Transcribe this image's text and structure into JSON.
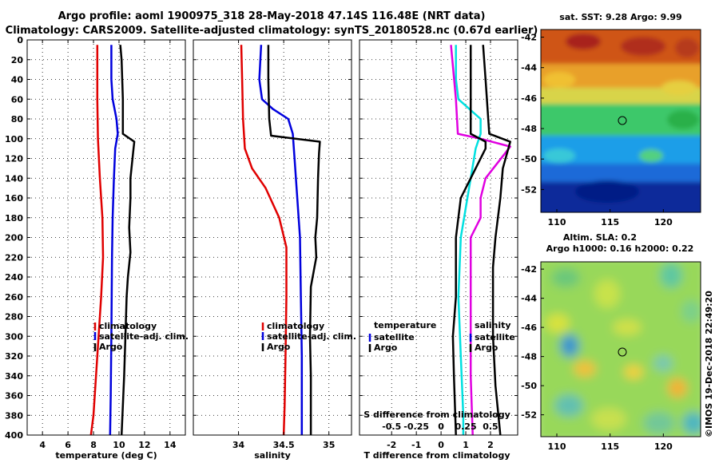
{
  "title": {
    "line1": "Argo profile: aoml 1900975_318 28-May-2018 47.14S 116.48E (NRT data)",
    "line2": "Climatology: CARS2009. Satellite-adjusted climatology: synTS_20180528.nc (0.67d earlier)"
  },
  "colors": {
    "climatology": "#e00000",
    "satellite_adj": "#0000dd",
    "argo": "#000000",
    "t_diff_satellite": "#00e0e0",
    "s_diff_satellite": "#e000e0"
  },
  "chart_data": [
    {
      "type": "line",
      "name": "temperature-panel",
      "xlabel": "temperature (deg C)",
      "xlim": [
        2.8,
        15.2
      ],
      "xticks": [
        4,
        6,
        8,
        10,
        12,
        14
      ],
      "ylim": [
        0,
        400
      ],
      "yticks": [
        0,
        20,
        40,
        60,
        80,
        100,
        120,
        140,
        160,
        180,
        200,
        220,
        240,
        260,
        280,
        300,
        320,
        340,
        360,
        380,
        400
      ],
      "legend": [
        "climatology",
        "satellite-adj. clim.",
        "Argo"
      ],
      "series": [
        {
          "name": "climatology",
          "color": "#e00000",
          "points": [
            [
              8.3,
              5
            ],
            [
              8.3,
              60
            ],
            [
              8.35,
              100
            ],
            [
              8.5,
              140
            ],
            [
              8.7,
              180
            ],
            [
              8.75,
              220
            ],
            [
              8.6,
              260
            ],
            [
              8.4,
              300
            ],
            [
              8.2,
              340
            ],
            [
              8.0,
              380
            ],
            [
              7.8,
              400
            ]
          ]
        },
        {
          "name": "satellite-adj. clim.",
          "color": "#0000dd",
          "points": [
            [
              9.4,
              5
            ],
            [
              9.4,
              40
            ],
            [
              9.5,
              60
            ],
            [
              9.8,
              80
            ],
            [
              9.9,
              95
            ],
            [
              9.7,
              110
            ],
            [
              9.6,
              140
            ],
            [
              9.5,
              180
            ],
            [
              9.45,
              220
            ],
            [
              9.4,
              300
            ],
            [
              9.35,
              360
            ],
            [
              9.3,
              400
            ]
          ]
        },
        {
          "name": "Argo",
          "color": "#000000",
          "points": [
            [
              10.1,
              5
            ],
            [
              10.2,
              20
            ],
            [
              10.3,
              60
            ],
            [
              10.3,
              95
            ],
            [
              11.2,
              103
            ],
            [
              11.1,
              115
            ],
            [
              10.9,
              140
            ],
            [
              10.9,
              160
            ],
            [
              10.8,
              190
            ],
            [
              10.9,
              215
            ],
            [
              10.7,
              240
            ],
            [
              10.6,
              260
            ],
            [
              10.5,
              300
            ],
            [
              10.4,
              340
            ],
            [
              10.3,
              370
            ],
            [
              10.2,
              400
            ]
          ]
        }
      ]
    },
    {
      "type": "line",
      "name": "salinity-panel",
      "xlabel": "salinity",
      "xlim": [
        33.5,
        35.25
      ],
      "xticks": [
        34,
        34.5,
        35
      ],
      "ylim": [
        0,
        400
      ],
      "legend": [
        "climatology",
        "satellite-adj. clim.",
        "Argo"
      ],
      "series": [
        {
          "name": "climatology",
          "color": "#e00000",
          "points": [
            [
              34.03,
              5
            ],
            [
              34.04,
              40
            ],
            [
              34.05,
              80
            ],
            [
              34.07,
              110
            ],
            [
              34.15,
              130
            ],
            [
              34.3,
              150
            ],
            [
              34.45,
              180
            ],
            [
              34.53,
              210
            ],
            [
              34.53,
              260
            ],
            [
              34.52,
              320
            ],
            [
              34.51,
              370
            ],
            [
              34.5,
              400
            ]
          ]
        },
        {
          "name": "satellite-adj. clim.",
          "color": "#0000dd",
          "points": [
            [
              34.25,
              5
            ],
            [
              34.23,
              40
            ],
            [
              34.26,
              60
            ],
            [
              34.38,
              70
            ],
            [
              34.55,
              80
            ],
            [
              34.6,
              95
            ],
            [
              34.62,
              120
            ],
            [
              34.65,
              160
            ],
            [
              34.68,
              200
            ],
            [
              34.69,
              260
            ],
            [
              34.7,
              320
            ],
            [
              34.7,
              400
            ]
          ]
        },
        {
          "name": "Argo",
          "color": "#000000",
          "points": [
            [
              34.33,
              5
            ],
            [
              34.33,
              40
            ],
            [
              34.34,
              80
            ],
            [
              34.36,
              97
            ],
            [
              34.9,
              103
            ],
            [
              34.89,
              115
            ],
            [
              34.88,
              140
            ],
            [
              34.87,
              180
            ],
            [
              34.85,
              200
            ],
            [
              34.86,
              220
            ],
            [
              34.8,
              250
            ],
            [
              34.79,
              300
            ],
            [
              34.8,
              340
            ],
            [
              34.8,
              400
            ]
          ]
        }
      ]
    },
    {
      "type": "line",
      "name": "difference-panel",
      "xlabel": "T difference from climatology",
      "xlabel_top": "S difference from climatology",
      "xlim": [
        -3.3,
        3.1
      ],
      "xticks": [
        -2,
        -1,
        0,
        1,
        2
      ],
      "xlim_top": [
        -0.825,
        0.775
      ],
      "xticks_top": [
        -0.5,
        -0.25,
        0,
        0.25,
        0.5
      ],
      "ylim": [
        0,
        400
      ],
      "legend_left": [
        "temperature",
        "satellite",
        "Argo"
      ],
      "legend_right": [
        "salinity",
        "satellite",
        "Argo"
      ],
      "series": [
        {
          "name": "T diff satellite",
          "color": "#00e0e0",
          "points": [
            [
              0.6,
              5
            ],
            [
              0.6,
              40
            ],
            [
              0.7,
              60
            ],
            [
              1.6,
              80
            ],
            [
              1.6,
              95
            ],
            [
              1.4,
              110
            ],
            [
              1.2,
              140
            ],
            [
              1.0,
              170
            ],
            [
              0.8,
              200
            ],
            [
              0.7,
              260
            ],
            [
              0.8,
              320
            ],
            [
              0.9,
              380
            ],
            [
              0.9,
              400
            ]
          ]
        },
        {
          "name": "S diff satellite",
          "color": "#e000e0",
          "points": [
            [
              0.1,
              5
            ],
            [
              0.15,
              60
            ],
            [
              0.17,
              95
            ],
            [
              0.4,
              100
            ],
            [
              0.7,
              108
            ],
            [
              0.45,
              140
            ],
            [
              0.4,
              160
            ],
            [
              0.4,
              180
            ],
            [
              0.3,
              200
            ],
            [
              0.3,
              220
            ],
            [
              0.3,
              300
            ],
            [
              0.3,
              340
            ],
            [
              0.32,
              400
            ]
          ]
        },
        {
          "name": "T diff Argo",
          "color": "#000000",
          "points": [
            [
              1.7,
              5
            ],
            [
              1.8,
              40
            ],
            [
              1.95,
              95
            ],
            [
              2.8,
              103
            ],
            [
              2.5,
              130
            ],
            [
              2.4,
              160
            ],
            [
              2.2,
              200
            ],
            [
              2.1,
              230
            ],
            [
              2.1,
              260
            ],
            [
              2.1,
              300
            ],
            [
              2.2,
              350
            ],
            [
              2.4,
              400
            ]
          ]
        },
        {
          "name": "S diff Argo",
          "color": "#000000",
          "points": [
            [
              0.3,
              5
            ],
            [
              0.3,
              60
            ],
            [
              0.3,
              95
            ],
            [
              0.45,
              103
            ],
            [
              0.45,
              110
            ],
            [
              0.3,
              140
            ],
            [
              0.2,
              160
            ],
            [
              0.15,
              200
            ],
            [
              0.15,
              260
            ],
            [
              0.12,
              300
            ],
            [
              0.13,
              340
            ],
            [
              0.15,
              400
            ]
          ]
        }
      ]
    },
    {
      "type": "heatmap",
      "name": "sst-map",
      "title": "sat. SST: 9.28 Argo: 9.99",
      "xlim": [
        108.5,
        123.5
      ],
      "xticks": [
        110,
        115,
        120
      ],
      "ylim": [
        -53.5,
        -41.5
      ],
      "yticks": [
        -42,
        -44,
        -46,
        -48,
        -50,
        -52
      ],
      "marker": {
        "lon": 116.48,
        "lat": -47.14
      }
    },
    {
      "type": "heatmap",
      "name": "sla-map",
      "title": "Altim. SLA: 0.2",
      "subtitle": "Argo h1000: 0.16 h2000: 0.22",
      "xlim": [
        108.5,
        123.5
      ],
      "xticks": [
        110,
        115,
        120
      ],
      "ylim": [
        -53.5,
        -41.5
      ],
      "yticks": [
        -42,
        -44,
        -46,
        -48,
        -50,
        -52
      ],
      "marker": {
        "lon": 116.48,
        "lat": -47.14
      }
    }
  ],
  "credit": "©IMOS 19-Dec-2018 22:49:20"
}
